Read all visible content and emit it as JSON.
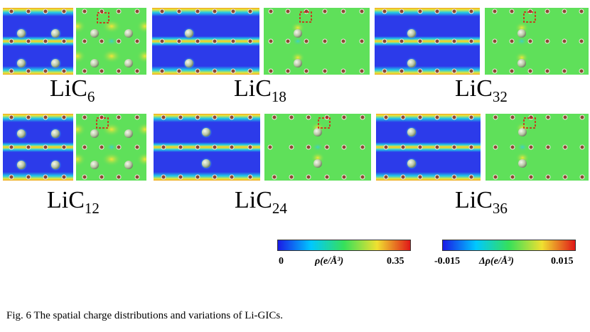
{
  "figure": {
    "labels": [
      {
        "base": "LiC",
        "sub": "6"
      },
      {
        "base": "LiC",
        "sub": "18"
      },
      {
        "base": "LiC",
        "sub": "32"
      },
      {
        "base": "LiC",
        "sub": "12"
      },
      {
        "base": "LiC",
        "sub": "24"
      },
      {
        "base": "LiC",
        "sub": "36"
      }
    ],
    "colorbars": {
      "density": {
        "min": "0",
        "symbol": "ρ(e/Å³)",
        "max": "0.35"
      },
      "difference": {
        "min": "-0.015",
        "symbol": "Δρ(e/Å³)",
        "max": "0.015"
      }
    },
    "caption": "Fig. 6   The spatial charge distributions and variations of Li-GICs."
  },
  "colors": {
    "blue": "#2c3bea",
    "green": "#5fe05a",
    "atom_c": "#8b4a33",
    "atom_li": "#b9c7a6",
    "marker": "#e01010"
  }
}
